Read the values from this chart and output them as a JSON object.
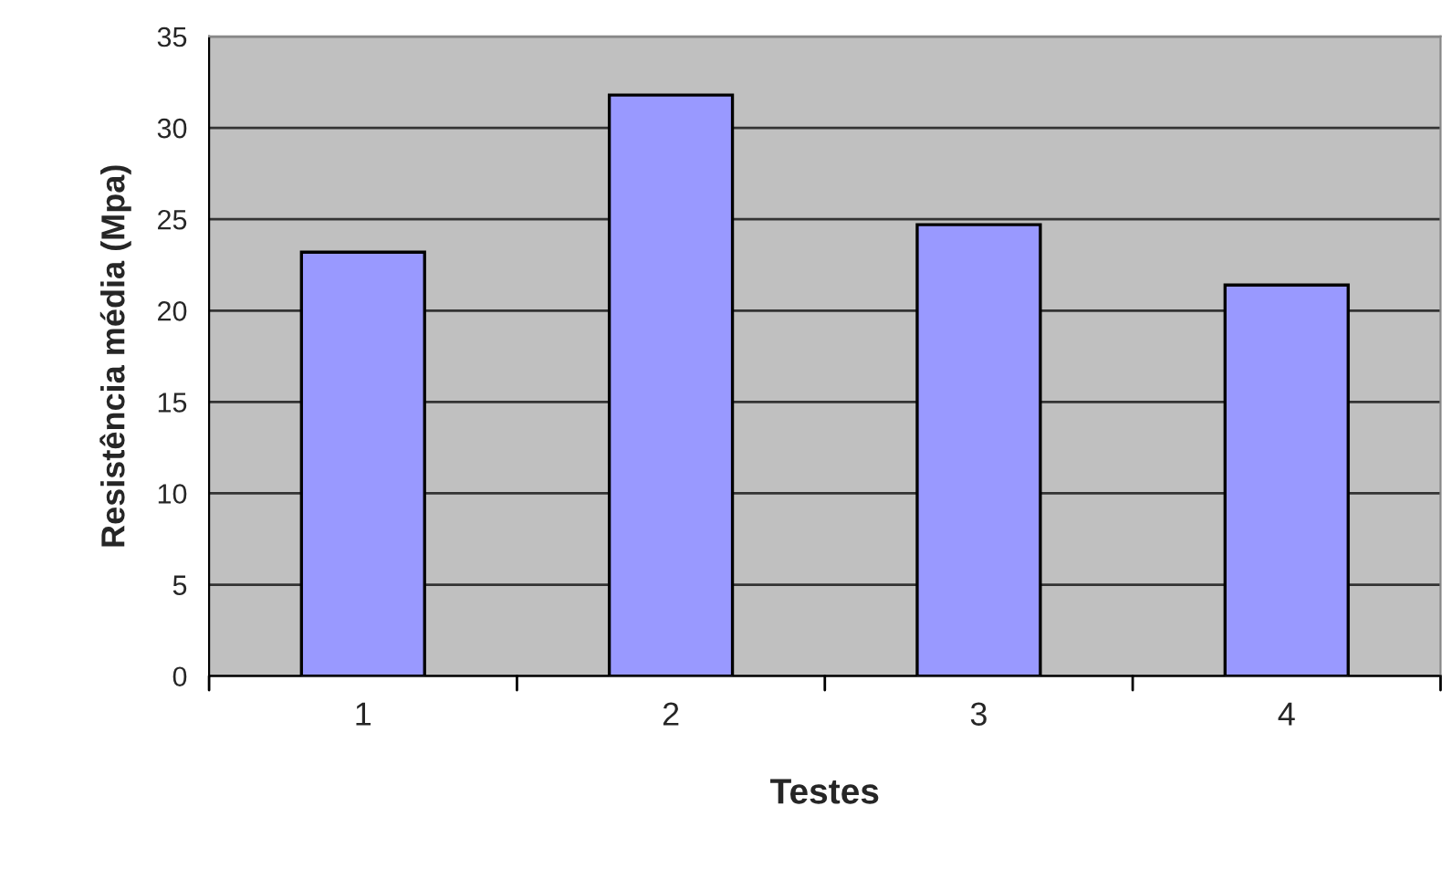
{
  "chart_data": {
    "type": "bar",
    "xlabel": "Testes",
    "ylabel": "Resistência média (Mpa)",
    "categories": [
      "1",
      "2",
      "3",
      "4"
    ],
    "values": [
      23.2,
      31.8,
      24.7,
      21.4
    ],
    "color": "#9999ff",
    "ylim": [
      0,
      35
    ],
    "yticks": [
      0,
      5,
      10,
      15,
      20,
      25,
      30,
      35
    ],
    "grid": "y"
  }
}
